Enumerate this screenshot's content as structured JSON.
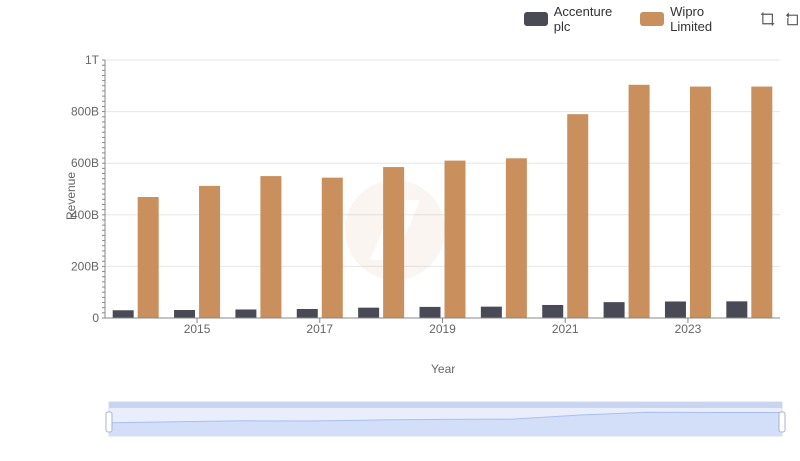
{
  "chart_data": {
    "type": "bar",
    "categories": [
      2014,
      2015,
      2016,
      2017,
      2018,
      2019,
      2020,
      2021,
      2022,
      2023,
      2024
    ],
    "xticks": [
      "2015",
      "2017",
      "2019",
      "2021",
      "2023"
    ],
    "series": [
      {
        "name": "Accenture plc",
        "color": "#4a4a56",
        "values": [
          30.0,
          31.0,
          33.0,
          35.0,
          40.0,
          43.0,
          44.0,
          50.5,
          61.5,
          64.0,
          64.5
        ]
      },
      {
        "name": "Wipro Limited",
        "color": "#c98f5c",
        "values": [
          469.0,
          512.0,
          550.0,
          544.0,
          585.0,
          610.0,
          619.0,
          790.0,
          904.0,
          897.0,
          897.0
        ]
      }
    ],
    "yunit_note": "values in billions",
    "ylim": [
      0,
      1000
    ],
    "yticks": [
      "0",
      "200B",
      "400B",
      "600B",
      "800B",
      "1T"
    ],
    "xlabel": "Year",
    "ylabel": "Revenue",
    "legend_position": "top-right",
    "grid": true
  },
  "legend": {
    "items": [
      {
        "label": "Accenture plc",
        "color": "#4a4a56"
      },
      {
        "label": "Wipro Limited",
        "color": "#c98f5c"
      }
    ]
  },
  "toolbar": {
    "zoom_icon": "zoom-icon",
    "reset_icon": "reset-icon"
  }
}
